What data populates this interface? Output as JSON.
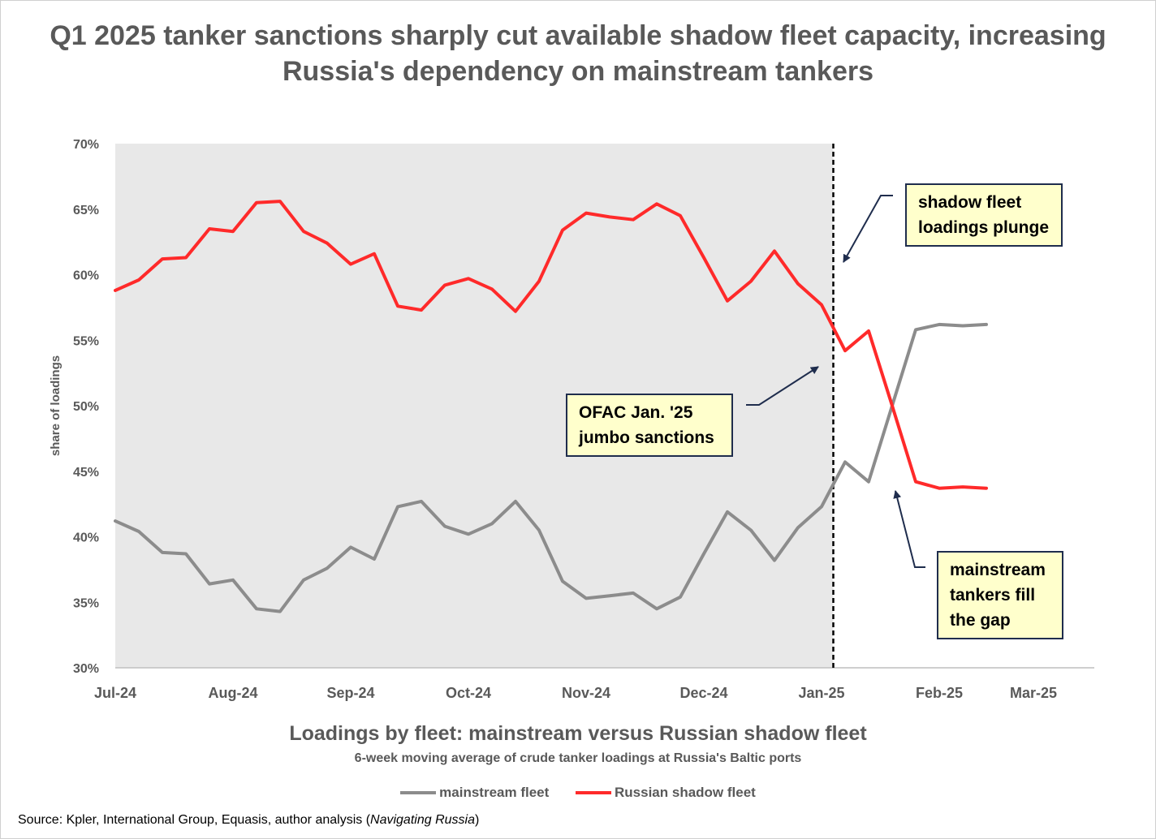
{
  "title": "Q1 2025 tanker sanctions sharply cut available shadow fleet capacity, increasing Russia's dependency on mainstream tankers",
  "subtitle": "Loadings by fleet: mainstream versus Russian shadow fleet",
  "subsubtitle": "6-week moving average of crude tanker loadings at Russia's Baltic ports",
  "source_prefix": "Source: Kpler, International Group, Equasis, author analysis (",
  "source_italic": "Navigating Russia",
  "source_suffix": ")",
  "callouts": {
    "shadow": "shadow fleet loadings plunge",
    "ofac": "OFAC Jan. '25 jumbo sanctions",
    "mainstream": "mainstream tankers fill the gap"
  },
  "chart_data": {
    "type": "line",
    "ylabel": "share of loadings",
    "xlabel": "",
    "ylim": [
      30,
      70
    ],
    "y_ticks": [
      "30%",
      "35%",
      "40%",
      "45%",
      "50%",
      "55%",
      "60%",
      "65%",
      "70%"
    ],
    "x_tick_labels": [
      "Jul-24",
      "Aug-24",
      "Sep-24",
      "Oct-24",
      "Nov-24",
      "Dec-24",
      "Jan-25",
      "Feb-25",
      "Mar-25"
    ],
    "x_tick_index": [
      0,
      5,
      10,
      15,
      20,
      25,
      30,
      35,
      39
    ],
    "shaded_region_index": [
      0,
      30.5
    ],
    "sanctions_line_index": 30.5,
    "series": [
      {
        "name": "mainstream fleet",
        "color": "#8c8c8c",
        "values": [
          41.2,
          40.4,
          38.8,
          38.7,
          36.4,
          36.7,
          34.5,
          34.3,
          36.7,
          37.6,
          39.2,
          38.3,
          42.3,
          42.7,
          40.8,
          40.2,
          41.0,
          42.7,
          40.5,
          36.6,
          35.3,
          35.5,
          35.7,
          34.5,
          35.4,
          38.7,
          41.9,
          40.5,
          38.2,
          40.7,
          42.3,
          45.7,
          44.2,
          50.0,
          55.8,
          56.2,
          56.1,
          56.2
        ]
      },
      {
        "name": "Russian shadow fleet",
        "color": "#ff2a2a",
        "values": [
          58.8,
          59.6,
          61.2,
          61.3,
          63.5,
          63.3,
          65.5,
          65.6,
          63.3,
          62.4,
          60.8,
          61.6,
          57.6,
          57.3,
          59.2,
          59.7,
          58.9,
          57.2,
          59.5,
          63.4,
          64.7,
          64.4,
          64.2,
          65.4,
          64.5,
          61.3,
          58.0,
          59.5,
          61.8,
          59.3,
          57.7,
          54.2,
          55.7,
          50.0,
          44.2,
          43.7,
          43.8,
          43.7
        ]
      }
    ]
  }
}
